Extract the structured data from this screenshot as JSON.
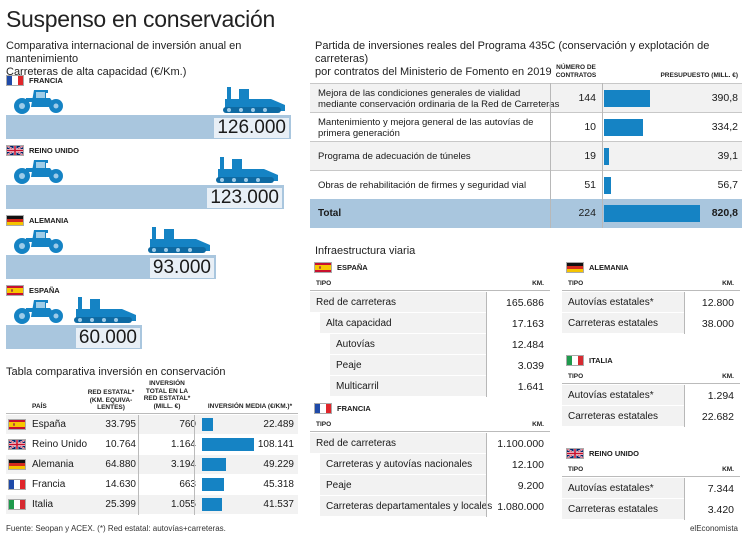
{
  "title": "Suspenso en conservación",
  "left_chart": {
    "subtitle_line1": "Comparativa internacional de inversión anual en mantenimiento",
    "subtitle_line2": "Carreteras de alta capacidad (€/Km.)",
    "chart_data": {
      "type": "bar",
      "categories": [
        "FRANCIA",
        "REINO UNIDO",
        "ALEMANIA",
        "ESPAÑA"
      ],
      "values": [
        126000,
        123000,
        93000,
        60000
      ],
      "value_labels": [
        "126.000",
        "123.000",
        "93.000",
        "60.000"
      ],
      "xlim": [
        0,
        126000
      ]
    }
  },
  "comparison_table": {
    "title": "Tabla comparativa inversión en conservación",
    "headers": {
      "country": "PAÍS",
      "network": "RED ESTATAL* (KM. EQUIVA- LENTES)",
      "investment": "INVERSIÓN TOTAL EN LA RED ESTATAL* (MILL. €)",
      "average": "INVERSIÓN MEDIA (€/KM.)*"
    },
    "chart_data": {
      "type": "table",
      "rows": [
        {
          "country": "España",
          "flag": "spain",
          "network": "33.795",
          "investment": "760",
          "average": "22.489",
          "average_value": 22489
        },
        {
          "country": "Reino Unido",
          "flag": "uk",
          "network": "10.764",
          "investment": "1.164",
          "average": "108.141",
          "average_value": 108141
        },
        {
          "country": "Alemania",
          "flag": "germany",
          "network": "64.880",
          "investment": "3.194",
          "average": "49.229",
          "average_value": 49229
        },
        {
          "country": "Francia",
          "flag": "france",
          "network": "14.630",
          "investment": "663",
          "average": "45.318",
          "average_value": 45318
        },
        {
          "country": "Italia",
          "flag": "italy",
          "network": "25.399",
          "investment": "1.055",
          "average": "41.537",
          "average_value": 41537
        }
      ],
      "bar_max": 108141
    }
  },
  "program_table": {
    "title_line1": "Partida de inversiones reales del Programa 435C (conservación y explotación de carreteras)",
    "title_line2": "por contratos del Ministerio de Fomento en 2019",
    "headers": {
      "contracts": "NÚMERO DE CONTRATOS",
      "budget": "PRESUPUESTO (MILL. €)"
    },
    "chart_data": {
      "type": "table",
      "rows": [
        {
          "label_line1": "Mejora de las condiciones generales de vialidad",
          "label_line2": "mediante conservación ordinaria de la Red de Carreteras",
          "contracts": "144",
          "budget": "390,8",
          "budget_value": 390.8
        },
        {
          "label_line1": "Mantenimiento y mejora general de las autovías de",
          "label_line2": "primera generación",
          "contracts": "10",
          "budget": "334,2",
          "budget_value": 334.2
        },
        {
          "label_line1": "Programa de adecuación de túneles",
          "label_line2": "",
          "contracts": "19",
          "budget": "39,1",
          "budget_value": 39.1
        },
        {
          "label_line1": "Obras de rehabilitación de firmes y seguridad vial",
          "label_line2": "",
          "contracts": "51",
          "budget": "56,7",
          "budget_value": 56.7
        }
      ],
      "total": {
        "label": "Total",
        "contracts": "224",
        "budget": "820,8",
        "budget_value": 820.8
      },
      "bar_max": 820.8
    }
  },
  "infra": {
    "title": "Infraestructura viaria",
    "col_tipo": "TIPO",
    "col_km": "KM.",
    "spain": {
      "name": "ESPAÑA",
      "rows": [
        {
          "label": "Red de carreteras",
          "km": "165.686"
        },
        {
          "label": "Alta capacidad",
          "km": "17.163"
        },
        {
          "label": "Autovías",
          "km": "12.484"
        },
        {
          "label": "Peaje",
          "km": "3.039"
        },
        {
          "label": "Multicarril",
          "km": "1.641"
        }
      ]
    },
    "france": {
      "name": "FRANCIA",
      "rows": [
        {
          "label": "Red de carreteras",
          "km": "1.100.000"
        },
        {
          "label": "Carreteras y autovías nacionales",
          "km": "12.100"
        },
        {
          "label": "Peaje",
          "km": "9.200"
        },
        {
          "label": "Carreteras departamentales y locales",
          "km": "1.080.000"
        }
      ]
    },
    "germany": {
      "name": "ALEMANIA",
      "rows": [
        {
          "label": "Autovías estatales*",
          "km": "12.800"
        },
        {
          "label": "Carreteras estatales",
          "km": "38.000"
        }
      ]
    },
    "italy": {
      "name": "ITALIA",
      "rows": [
        {
          "label": "Autovías estatales*",
          "km": "1.294"
        },
        {
          "label": "Carreteras estatales",
          "km": "22.682"
        }
      ]
    },
    "uk": {
      "name": "REINO UNIDO",
      "rows": [
        {
          "label": "Autovías estatales*",
          "km": "7.344"
        },
        {
          "label": "Carreteras estatales",
          "km": "3.420"
        }
      ]
    }
  },
  "footer": {
    "source": "Fuente: Seopan y ACEX. (*) Red estatal: autovías+carreteras.",
    "brand": "elEconomista"
  },
  "colors": {
    "road": "#a9c6de",
    "bar": "#1583c4",
    "vehicle": "#1583c4"
  }
}
